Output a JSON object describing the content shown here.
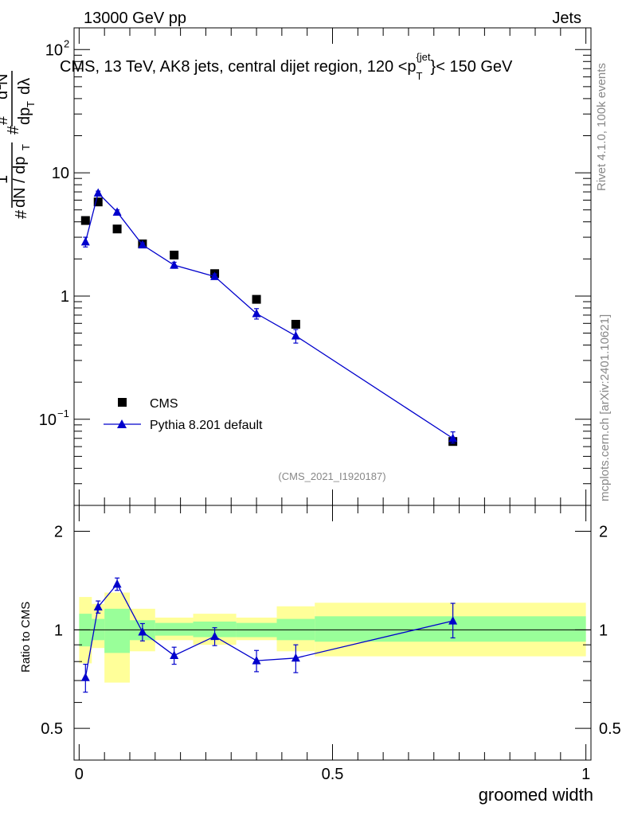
{
  "header": {
    "left": "13000 GeV pp",
    "right": "Jets"
  },
  "side_labels": {
    "rivet": "Rivet 4.1.0,  100k events",
    "mcplots": "mcplots.cern.ch [arXiv:2401.10621]"
  },
  "chart_data": [
    {
      "type": "scatter",
      "panel": "main",
      "title": "CMS, 13 TeV, AK8 jets, central dijet region, 120 <p_T^{jet}< 150 GeV",
      "title_main": "CMS, 13 TeV, AK8 jets, central dijet region, 120 <p",
      "title_sub": "T",
      "title_sup": "{jet",
      "title_end": "}< 150 GeV",
      "ylabel": "1/dN/dp_T d^2N/dp_T dλ",
      "yscale": "log",
      "ylim": [
        0.02,
        150
      ],
      "xlim": [
        -0.01,
        1.01
      ],
      "ytick_labels": [
        "10",
        "1"
      ],
      "ytick_pow_labels": [
        {
          "base": "10",
          "exp": "2",
          "value": 100
        },
        {
          "base": "10",
          "exp": "−1",
          "value": 0.1
        }
      ],
      "ytick_values": [
        10,
        1
      ],
      "annotation": "(CMS_2021_I1920187)",
      "legend_position": "bottom-left",
      "series": [
        {
          "name": "CMS",
          "marker": "square",
          "color": "#000000",
          "x": [
            0.0125,
            0.0375,
            0.075,
            0.125,
            0.1875,
            0.2675,
            0.35,
            0.4275,
            0.7375
          ],
          "y": [
            4.1,
            5.8,
            3.5,
            2.65,
            2.15,
            1.52,
            0.94,
            0.59,
            0.066
          ]
        },
        {
          "name": "Pythia 8.201 default",
          "marker": "triangle",
          "color": "#0000cc",
          "x": [
            0.0125,
            0.0375,
            0.075,
            0.125,
            0.1875,
            0.2675,
            0.35,
            0.4275,
            0.7375
          ],
          "y": [
            2.75,
            6.85,
            4.8,
            2.6,
            1.78,
            1.44,
            0.72,
            0.475,
            0.07
          ],
          "yerr_lo": [
            0.25,
            0.25,
            0.2,
            0.1,
            0.1,
            0.07,
            0.07,
            0.06,
            0.006
          ],
          "yerr_hi": [
            0.25,
            0.25,
            0.2,
            0.1,
            0.1,
            0.07,
            0.07,
            0.06,
            0.009
          ]
        }
      ]
    },
    {
      "type": "line",
      "panel": "ratio",
      "ylabel": "Ratio to CMS",
      "xlabel": "groomed width",
      "yscale": "log",
      "ylim": [
        0.4,
        2.4
      ],
      "xlim": [
        -0.01,
        1.01
      ],
      "ytick_labels": [
        "2",
        "1",
        "0.5"
      ],
      "ytick_values": [
        2,
        1,
        0.5
      ],
      "xtick_labels": [
        "0",
        "0.5",
        "1"
      ],
      "xtick_values": [
        0,
        0.5,
        1
      ],
      "bands": {
        "bin_edges": [
          0,
          0.025,
          0.05,
          0.1,
          0.15,
          0.225,
          0.31,
          0.39,
          0.465,
          1.0
        ],
        "inner_lo": [
          0.89,
          0.93,
          0.85,
          0.93,
          0.96,
          0.95,
          0.95,
          0.93,
          0.92
        ],
        "inner_hi": [
          1.12,
          1.08,
          1.16,
          1.07,
          1.05,
          1.06,
          1.05,
          1.08,
          1.1
        ],
        "outer_lo": [
          0.79,
          0.88,
          0.69,
          0.86,
          0.93,
          0.9,
          0.93,
          0.86,
          0.83
        ],
        "outer_hi": [
          1.26,
          1.2,
          1.3,
          1.16,
          1.09,
          1.12,
          1.09,
          1.18,
          1.21
        ],
        "inner_color": "#99ff99",
        "outer_color": "#ffff99"
      },
      "series": [
        {
          "name": "Pythia 8.201 default / CMS",
          "color": "#0000cc",
          "x": [
            0.0125,
            0.0375,
            0.075,
            0.125,
            0.1875,
            0.2675,
            0.35,
            0.4275,
            0.7375
          ],
          "y": [
            0.715,
            1.175,
            1.38,
            0.985,
            0.835,
            0.955,
            0.805,
            0.82,
            1.065
          ],
          "yerr_lo": [
            0.07,
            0.05,
            0.06,
            0.06,
            0.05,
            0.06,
            0.06,
            0.08,
            0.12
          ],
          "yerr_hi": [
            0.07,
            0.05,
            0.06,
            0.06,
            0.05,
            0.06,
            0.06,
            0.08,
            0.14
          ]
        }
      ]
    }
  ]
}
